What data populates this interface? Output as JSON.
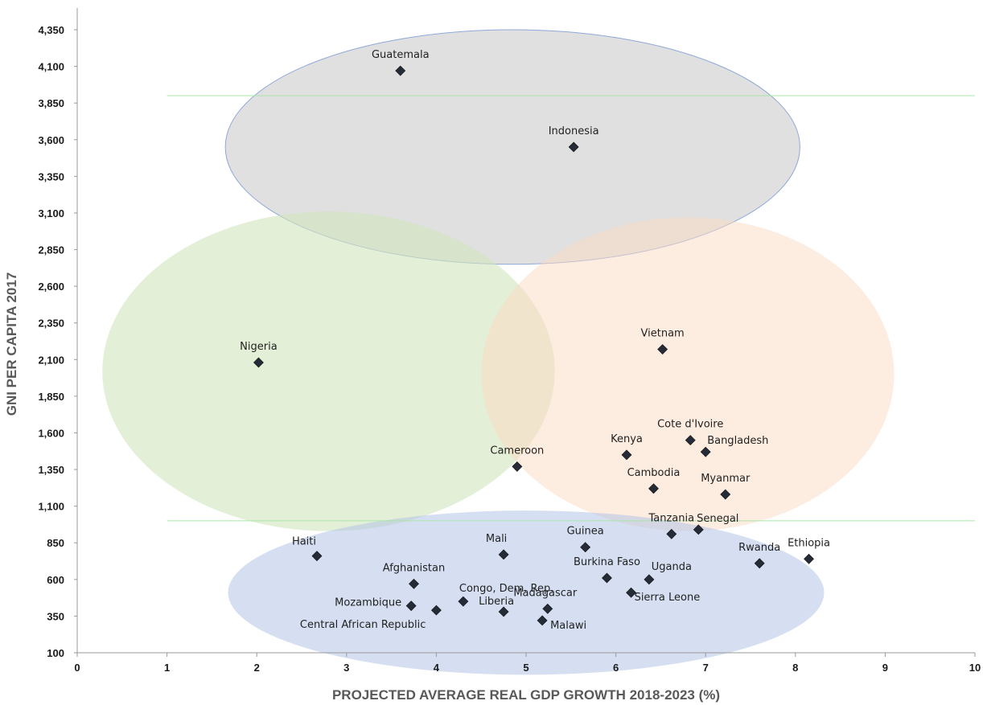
{
  "chart_data": {
    "type": "scatter",
    "title": "",
    "xlabel": "PROJECTED  AVERAGE  REAL GDP  GROWTH 2018-2023 (%)",
    "ylabel": "GNI PER CAPITA 2017",
    "xlim": [
      0,
      10
    ],
    "ylim": [
      100,
      4350
    ],
    "x_ticks": [
      "0",
      "1",
      "2",
      "3",
      "4",
      "5",
      "6",
      "7",
      "8",
      "9",
      "10"
    ],
    "y_ticks": [
      "100",
      "350",
      "600",
      "850",
      "1,100",
      "1,350",
      "1,600",
      "1,850",
      "2,100",
      "2,350",
      "2,600",
      "2,850",
      "3,100",
      "3,350",
      "3,600",
      "3,850",
      "4,100",
      "4,350"
    ],
    "grid": false,
    "reference_lines_y": [
      3900,
      1000
    ],
    "reference_line_color": "#a8e6a8",
    "marker_color": "#262b38",
    "highlight_label_color": "#e03c3c",
    "zones": [
      {
        "id": "upper",
        "cx": 4.85,
        "cy": 3550,
        "rx": 3.2,
        "ry": 800,
        "fill": "#d4d4d4",
        "opacity": 0.72,
        "stroke": "#8fa8d8"
      },
      {
        "id": "left",
        "cx": 2.8,
        "cy": 2020,
        "rx": 2.52,
        "ry": 1090,
        "fill": "#d2e5bd",
        "opacity": 0.6
      },
      {
        "id": "right",
        "cx": 6.8,
        "cy": 2000,
        "rx": 2.3,
        "ry": 1070,
        "fill": "#fbdac2",
        "opacity": 0.5
      },
      {
        "id": "lower",
        "cx": 5.0,
        "cy": 510,
        "rx": 3.32,
        "ry": 560,
        "fill": "#b3c4e6",
        "opacity": 0.55
      }
    ],
    "series": [
      {
        "points": [
          {
            "label": "Guatemala",
            "x": 3.6,
            "y": 4070,
            "highlight": true
          },
          {
            "label": "Indonesia",
            "x": 5.53,
            "y": 3550,
            "highlight": true
          },
          {
            "label": "Nigeria",
            "x": 2.02,
            "y": 2080,
            "highlight": false
          },
          {
            "label": "Vietnam",
            "x": 6.52,
            "y": 2170,
            "highlight": true
          },
          {
            "label": "Cameroon",
            "x": 4.9,
            "y": 1370,
            "highlight": false
          },
          {
            "label": "Kenya",
            "x": 6.12,
            "y": 1450,
            "highlight": false
          },
          {
            "label": "Cote d'Ivoire",
            "x": 6.83,
            "y": 1550,
            "highlight": false
          },
          {
            "label": "Bangladesh",
            "x": 7.0,
            "y": 1470,
            "highlight": false
          },
          {
            "label": "Cambodia",
            "x": 6.42,
            "y": 1220,
            "highlight": false
          },
          {
            "label": "Myanmar",
            "x": 7.22,
            "y": 1180,
            "highlight": false
          },
          {
            "label": "Senegal",
            "x": 6.92,
            "y": 940,
            "highlight": false
          },
          {
            "label": "Tanzania",
            "x": 6.62,
            "y": 910,
            "highlight": false
          },
          {
            "label": "Ethiopia",
            "x": 8.15,
            "y": 740,
            "highlight": false
          },
          {
            "label": "Rwanda",
            "x": 7.6,
            "y": 710,
            "highlight": false
          },
          {
            "label": "Haiti",
            "x": 2.67,
            "y": 760,
            "highlight": false
          },
          {
            "label": "Mali",
            "x": 4.75,
            "y": 770,
            "highlight": false
          },
          {
            "label": "Guinea",
            "x": 5.66,
            "y": 820,
            "highlight": false
          },
          {
            "label": "Burkina Faso",
            "x": 5.9,
            "y": 610,
            "highlight": false
          },
          {
            "label": "Uganda",
            "x": 6.37,
            "y": 600,
            "highlight": false
          },
          {
            "label": "Sierra Leone",
            "x": 6.17,
            "y": 510,
            "highlight": false
          },
          {
            "label": "Afghanistan",
            "x": 3.75,
            "y": 570,
            "highlight": false
          },
          {
            "label": "Mozambique",
            "x": 3.72,
            "y": 420,
            "highlight": false
          },
          {
            "label": "Congo, Dem. Rep.",
            "x": 4.3,
            "y": 450,
            "highlight": false
          },
          {
            "label": "Central African Republic",
            "x": 4.0,
            "y": 390,
            "highlight": false
          },
          {
            "label": "Liberia",
            "x": 4.75,
            "y": 380,
            "highlight": false
          },
          {
            "label": "Madagascar",
            "x": 5.24,
            "y": 400,
            "highlight": false
          },
          {
            "label": "Malawi",
            "x": 5.18,
            "y": 320,
            "highlight": false
          }
        ]
      }
    ]
  }
}
